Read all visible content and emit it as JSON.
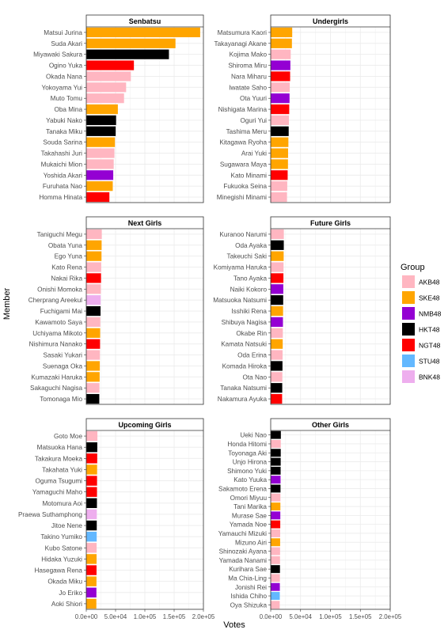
{
  "page": {
    "xlabel": "Votes",
    "ylabel": "Member"
  },
  "legend": {
    "title": "Group",
    "placement": "right",
    "items": [
      {
        "label": "AKB48",
        "color": "#FFB6C1"
      },
      {
        "label": "SKE48",
        "color": "#FFA500"
      },
      {
        "label": "NMB48",
        "color": "#9400D3"
      },
      {
        "label": "HKT48",
        "color": "#000000"
      },
      {
        "label": "NGT48",
        "color": "#FF0000"
      },
      {
        "label": "STU48",
        "color": "#63B8FF"
      },
      {
        "label": "BNK48",
        "color": "#EEAEEE"
      }
    ]
  },
  "chart_data": {
    "type": "bar",
    "orientation": "horizontal",
    "facets": "6 panels (3 rows x 2 columns), shared x axis",
    "xlim": [
      0,
      200000
    ],
    "xticks": [
      "0.0e+00",
      "5.0e+04",
      "1.0e+05",
      "1.5e+05",
      "2.0e+05"
    ],
    "xtick_values": [
      0,
      50000,
      100000,
      150000,
      200000
    ],
    "grid": true,
    "panels": [
      {
        "title": "Senbatsu",
        "members": [
          "Matsui Jurina",
          "Suda Akari",
          "Miyawaki Sakura",
          "Ogino Yuka",
          "Okada Nana",
          "Yokoyama Yui",
          "Muto Tomu",
          "Oba Mina",
          "Yabuki Nako",
          "Tanaka Miku",
          "Souda Sarina",
          "Takahashi Juri",
          "Mukaichi Mion",
          "Yoshida Akari",
          "Furuhata Nao",
          "Homma Hinata"
        ],
        "groups": [
          "SKE48",
          "SKE48",
          "HKT48",
          "NGT48",
          "AKB48",
          "AKB48",
          "AKB48",
          "SKE48",
          "HKT48",
          "HKT48",
          "SKE48",
          "AKB48",
          "AKB48",
          "NMB48",
          "SKE48",
          "NGT48"
        ],
        "values": [
          194453,
          152288,
          141106,
          81310,
          76118,
          68019,
          64451,
          53916,
          50922,
          50200,
          48908,
          48036,
          46853,
          46043,
          45217,
          39458
        ]
      },
      {
        "title": "Undergirls",
        "members": [
          "Matsumura Kaori",
          "Takayanagi Akane",
          "Kojima Mako",
          "Shiroma Miru",
          "Nara Miharu",
          "Iwatate Saho",
          "Ota Yuuri",
          "Nishigata Marina",
          "Oguri Yui",
          "Tashima Meru",
          "Kitagawa Ryoha",
          "Arai Yuki",
          "Sugawara Maya",
          "Kato Minami",
          "Fukuoka Seina",
          "Minegishi Minami"
        ],
        "groups": [
          "SKE48",
          "SKE48",
          "AKB48",
          "NMB48",
          "NGT48",
          "AKB48",
          "NMB48",
          "NGT48",
          "AKB48",
          "HKT48",
          "SKE48",
          "SKE48",
          "SKE48",
          "NGT48",
          "AKB48",
          "AKB48"
        ],
        "values": [
          36000,
          35500,
          33500,
          32900,
          32500,
          31900,
          31500,
          31000,
          30500,
          30100,
          29600,
          29100,
          28900,
          28400,
          27700,
          27300
        ]
      },
      {
        "title": "Next Girls",
        "members": [
          "Taniguchi Megu",
          "Obata Yuna",
          "Ego Yuna",
          "Kato Rena",
          "Nakai Rika",
          "Onishi Momoka",
          "Cherprang Areekul",
          "Fuchigami Mai",
          "Kawamoto Saya",
          "Uchiyama Mikoto",
          "Nishimura Nanako",
          "Sasaki Yukari",
          "Suenaga Oka",
          "Kumazaki Haruka",
          "Sakaguchi Nagisa",
          "Tomonaga Mio"
        ],
        "groups": [
          "AKB48",
          "SKE48",
          "SKE48",
          "AKB48",
          "NGT48",
          "AKB48",
          "BNK48",
          "HKT48",
          "AKB48",
          "SKE48",
          "NGT48",
          "AKB48",
          "SKE48",
          "SKE48",
          "AKB48",
          "HKT48"
        ],
        "values": [
          26500,
          26200,
          26000,
          25500,
          25200,
          24900,
          24600,
          24300,
          24000,
          23700,
          23500,
          23300,
          23100,
          22800,
          22500,
          22200
        ]
      },
      {
        "title": "Future Girls",
        "members": [
          "Kuranoo Narumi",
          "Oda Ayaka",
          "Takeuchi Saki",
          "Komiyama Haruka",
          "Tano Ayaka",
          "Naiki Kokoro",
          "Matsuoka Natsumi",
          "Isshiki Rena",
          "Shibuya Nagisa",
          "Okabe Rin",
          "Kamata Natsuki",
          "Oda Erina",
          "Komada Hiroka",
          "Ota Nao",
          "Tanaka Natsumi",
          "Nakamura Ayuka"
        ],
        "groups": [
          "AKB48",
          "HKT48",
          "SKE48",
          "AKB48",
          "NGT48",
          "NMB48",
          "HKT48",
          "SKE48",
          "NMB48",
          "AKB48",
          "SKE48",
          "AKB48",
          "HKT48",
          "AKB48",
          "HKT48",
          "NGT48"
        ],
        "values": [
          22000,
          21900,
          21700,
          21500,
          21300,
          21100,
          20900,
          20700,
          20500,
          20300,
          20100,
          19900,
          19700,
          19500,
          19300,
          19100
        ]
      },
      {
        "title": "Upcoming Girls",
        "members": [
          "Goto Moe",
          "Matsuoka Hana",
          "Takakura Moeka",
          "Takahata Yuki",
          "Oguma Tsugumi",
          "Yamaguchi Maho",
          "Motomura Aoi",
          "Praewa Suthamphong",
          "Jitoe Nene",
          "Takino Yumiko",
          "Kubo Satone",
          "Hidaka Yuzuki",
          "Hasegawa Rena",
          "Okada Miku",
          "Jo Eriko",
          "Aoki Shiori"
        ],
        "groups": [
          "AKB48",
          "HKT48",
          "NGT48",
          "SKE48",
          "NGT48",
          "NGT48",
          "HKT48",
          "BNK48",
          "HKT48",
          "STU48",
          "AKB48",
          "SKE48",
          "NGT48",
          "SKE48",
          "NMB48",
          "SKE48"
        ],
        "values": [
          19000,
          18800,
          18700,
          18500,
          18400,
          18300,
          18200,
          18000,
          17900,
          17800,
          17700,
          17600,
          17500,
          17400,
          17300,
          17200
        ]
      },
      {
        "title": "Other Girls",
        "members": [
          "Ueki Nao",
          "Honda Hitomi",
          "Toyonaga Aki",
          "Unjo Hirona",
          "Shimono Yuki",
          "Kato Yuuka",
          "Sakamoto Erena",
          "Omori Miyuu",
          "Tani Marika",
          "Murase Sae",
          "Yamada Noe",
          "Yamauchi Mizuki",
          "Mizuno Airi",
          "Shinozaki Ayana",
          "Yamada Nanami",
          "Kurihara Sae",
          "Ma Chia-Ling",
          "Jonishi Rei",
          "Ishida Chiho",
          "Oya Shizuka"
        ],
        "groups": [
          "HKT48",
          "AKB48",
          "HKT48",
          "HKT48",
          "HKT48",
          "NMB48",
          "HKT48",
          "AKB48",
          "SKE48",
          "NMB48",
          "NGT48",
          "AKB48",
          "SKE48",
          "AKB48",
          "AKB48",
          "HKT48",
          "AKB48",
          "NMB48",
          "STU48",
          "AKB48"
        ],
        "values": [
          17000,
          16900,
          16800,
          16700,
          16600,
          16500,
          16400,
          16300,
          16200,
          16100,
          16000,
          15900,
          15800,
          15700,
          15600,
          15500,
          15400,
          15300,
          15200,
          15100
        ]
      }
    ]
  }
}
